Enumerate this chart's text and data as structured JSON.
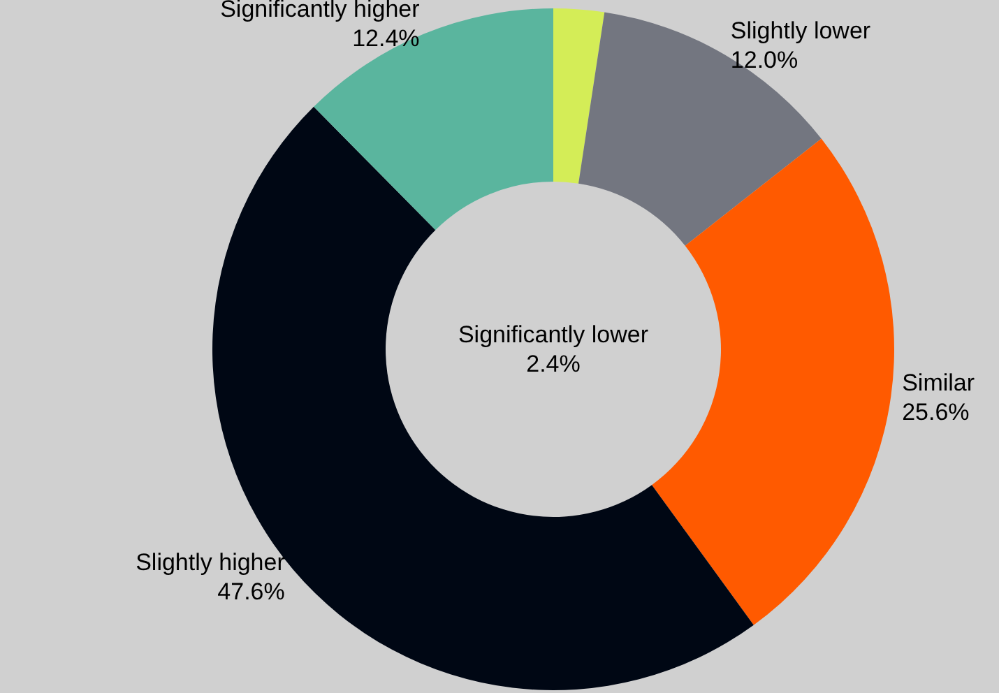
{
  "chart_data": {
    "type": "donut",
    "categories": [
      "Significantly lower",
      "Slightly lower",
      "Similar",
      "Slightly higher",
      "Significantly higher"
    ],
    "values": [
      2.4,
      12.0,
      25.6,
      47.6,
      12.4
    ],
    "value_labels": [
      "2.4%",
      "12.0%",
      "25.6%",
      "47.6%",
      "12.4%"
    ],
    "colors": [
      "#d4ed57",
      "#737680",
      "#ff5a00",
      "#000714",
      "#5ab59e"
    ],
    "legend": false
  }
}
